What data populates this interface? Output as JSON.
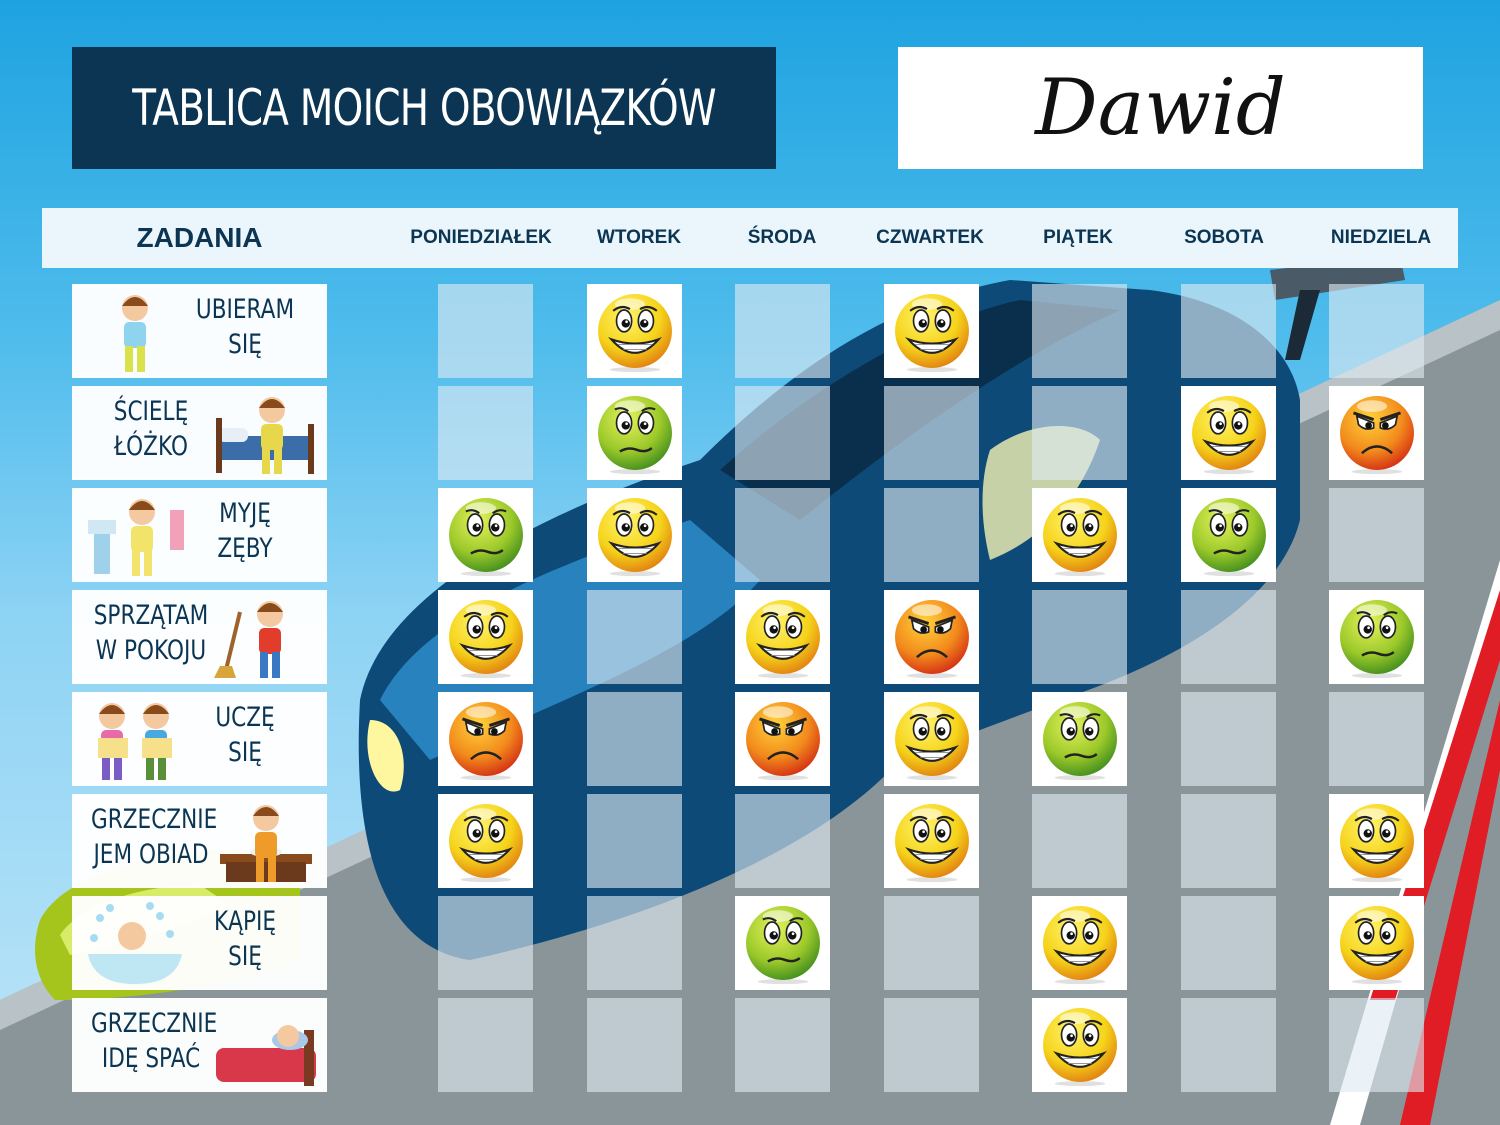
{
  "header": {
    "title": "TABLICA MOICH OBOWIĄZKÓW",
    "child_name": "Dawid"
  },
  "columns": {
    "tasks_label": "ZADANIA",
    "days": [
      "PONIEDZIAŁEK",
      "WTOREK",
      "ŚRODA",
      "CZWARTEK",
      "PIĄTEK",
      "SOBOTA",
      "NIEDZIELA"
    ]
  },
  "tasks": [
    {
      "lines": [
        "UBIERAM",
        "SIĘ"
      ],
      "illustration": "child-dressing-illustration",
      "text_side": "right"
    },
    {
      "lines": [
        "ŚCIELĘ",
        "ŁÓŻKO"
      ],
      "illustration": "child-making-bed-illustration",
      "text_side": "left"
    },
    {
      "lines": [
        "MYJĘ",
        "ZĘBY"
      ],
      "illustration": "child-brushing-teeth-illustration",
      "text_side": "right"
    },
    {
      "lines": [
        "SPRZĄTAM",
        "W POKOJU"
      ],
      "illustration": "child-sweeping-illustration",
      "text_side": "left"
    },
    {
      "lines": [
        "UCZĘ",
        "SIĘ"
      ],
      "illustration": "children-reading-illustration",
      "text_side": "right"
    },
    {
      "lines": [
        "GRZECZNIE",
        "JEM OBIAD"
      ],
      "illustration": "child-eating-illustration",
      "text_side": "left"
    },
    {
      "lines": [
        "KĄPIĘ",
        "SIĘ"
      ],
      "illustration": "baby-bathing-illustration",
      "text_side": "right"
    },
    {
      "lines": [
        "GRZECZNIE",
        "IDĘ SPAĆ"
      ],
      "illustration": "child-sleeping-illustration",
      "text_side": "left"
    }
  ],
  "grid": [
    [
      "",
      "happy",
      "",
      "happy",
      "",
      "",
      ""
    ],
    [
      "",
      "neutral",
      "",
      "",
      "",
      "happy",
      "angry"
    ],
    [
      "neutral",
      "happy",
      "",
      "",
      "happy",
      "neutral",
      ""
    ],
    [
      "happy",
      "",
      "happy",
      "angry",
      "",
      "",
      "neutral"
    ],
    [
      "angry",
      "",
      "angry",
      "happy",
      "neutral",
      "",
      ""
    ],
    [
      "happy",
      "",
      "",
      "happy",
      "",
      "",
      "happy"
    ],
    [
      "",
      "",
      "neutral",
      "",
      "happy",
      "",
      "happy"
    ],
    [
      "",
      "",
      "",
      "",
      "happy",
      "",
      ""
    ]
  ],
  "smiley_colors": {
    "happy": {
      "light": "#fff36b",
      "mid": "#f5d31a",
      "dark": "#e07b10"
    },
    "neutral": {
      "light": "#e4f25a",
      "mid": "#9cc92a",
      "dark": "#3d8a1e"
    },
    "angry": {
      "light": "#ffd23a",
      "mid": "#f28a1c",
      "dark": "#d22a14"
    }
  }
}
